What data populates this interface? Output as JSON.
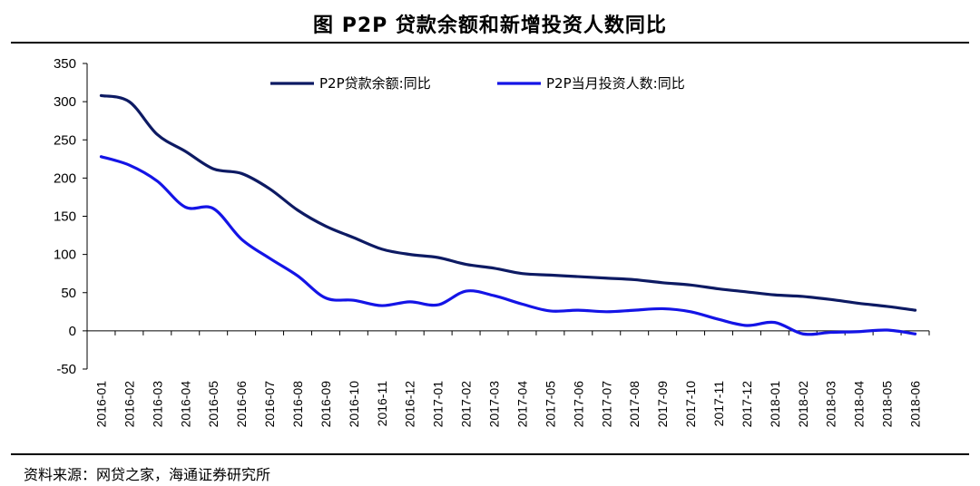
{
  "title": "图  P2P 贷款余额和新增投资人数同比",
  "source": "资料来源：网贷之家，海通证券研究所",
  "chart_data": {
    "type": "line",
    "x": [
      "2016-01",
      "2016-02",
      "2016-03",
      "2016-04",
      "2016-05",
      "2016-06",
      "2016-07",
      "2016-08",
      "2016-09",
      "2016-10",
      "2016-11",
      "2016-12",
      "2017-01",
      "2017-02",
      "2017-03",
      "2017-04",
      "2017-05",
      "2017-06",
      "2017-07",
      "2017-08",
      "2017-09",
      "2017-10",
      "2017-11",
      "2017-12",
      "2018-01",
      "2018-02",
      "2018-03",
      "2018-04",
      "2018-05",
      "2018-06"
    ],
    "yticks": [
      350,
      300,
      250,
      200,
      150,
      100,
      50,
      0,
      -50
    ],
    "ylim": [
      -50,
      350
    ],
    "legend_position": "top",
    "series": [
      {
        "name": "P2P贷款余额:同比",
        "color": "#0d1a63",
        "values": [
          308,
          300,
          257,
          235,
          212,
          206,
          186,
          158,
          137,
          122,
          107,
          100,
          96,
          87,
          82,
          75,
          73,
          71,
          69,
          67,
          63,
          60,
          55,
          51,
          47,
          45,
          41,
          36,
          32,
          27
        ]
      },
      {
        "name": "P2P当月投资人数:同比",
        "color": "#1414e6",
        "values": [
          228,
          217,
          196,
          162,
          160,
          120,
          95,
          72,
          43,
          40,
          33,
          38,
          34,
          52,
          46,
          35,
          26,
          27,
          25,
          27,
          29,
          25,
          15,
          7,
          11,
          -4,
          -2,
          -1,
          1,
          -4
        ]
      }
    ]
  }
}
